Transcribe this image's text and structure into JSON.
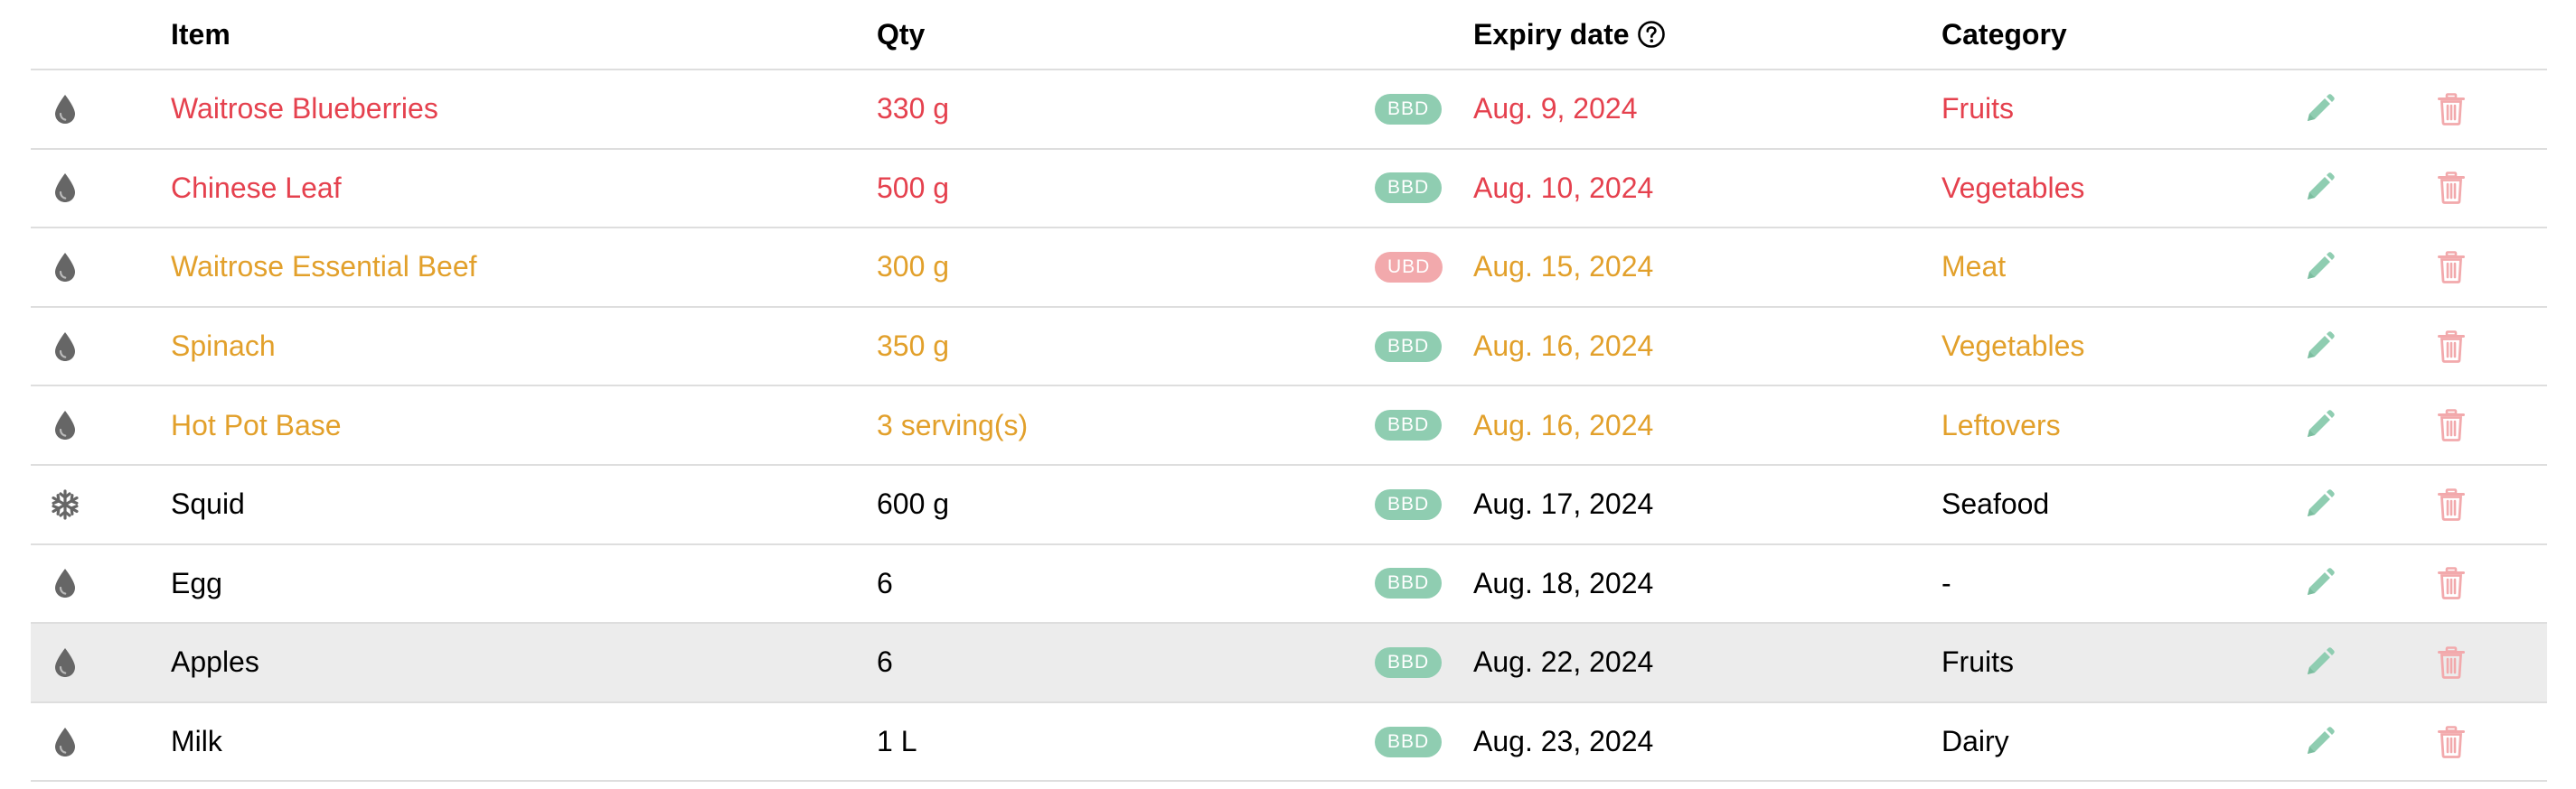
{
  "header": {
    "item": "Item",
    "qty": "Qty",
    "expiry": "Expiry date",
    "category": "Category"
  },
  "colors": {
    "expired": "#e5414e",
    "soon": "#e2a02b",
    "normal": "#000000",
    "badge_bbd": "#8fcdb1",
    "badge_ubd": "#f2a9ac",
    "edit_icon": "#8fcdb1",
    "delete_icon": "#f2a9ac",
    "storage_icon": "#666666"
  },
  "rows": [
    {
      "icon": "drop-icon",
      "item": "Waitrose Blueberries",
      "qty": "330 g",
      "badge": "BBD",
      "date": "Aug. 9, 2024",
      "category": "Fruits",
      "status": "expired"
    },
    {
      "icon": "drop-icon",
      "item": "Chinese Leaf",
      "qty": "500 g",
      "badge": "BBD",
      "date": "Aug. 10, 2024",
      "category": "Vegetables",
      "status": "expired"
    },
    {
      "icon": "drop-icon",
      "item": "Waitrose Essential Beef",
      "qty": "300 g",
      "badge": "UBD",
      "date": "Aug. 15, 2024",
      "category": "Meat",
      "status": "soon"
    },
    {
      "icon": "drop-icon",
      "item": "Spinach",
      "qty": "350 g",
      "badge": "BBD",
      "date": "Aug. 16, 2024",
      "category": "Vegetables",
      "status": "soon"
    },
    {
      "icon": "drop-icon",
      "item": "Hot Pot Base",
      "qty": "3 serving(s)",
      "badge": "BBD",
      "date": "Aug. 16, 2024",
      "category": "Leftovers",
      "status": "soon"
    },
    {
      "icon": "snowflake-icon",
      "item": "Squid",
      "qty": "600 g",
      "badge": "BBD",
      "date": "Aug. 17, 2024",
      "category": "Seafood",
      "status": "normal"
    },
    {
      "icon": "drop-icon",
      "item": "Egg",
      "qty": "6",
      "badge": "BBD",
      "date": "Aug. 18, 2024",
      "category": "-",
      "status": "normal"
    },
    {
      "icon": "drop-icon",
      "item": "Apples",
      "qty": "6",
      "badge": "BBD",
      "date": "Aug. 22, 2024",
      "category": "Fruits",
      "status": "normal",
      "highlighted": true
    },
    {
      "icon": "drop-icon",
      "item": "Milk",
      "qty": "1 L",
      "badge": "BBD",
      "date": "Aug. 23, 2024",
      "category": "Dairy",
      "status": "normal"
    }
  ]
}
